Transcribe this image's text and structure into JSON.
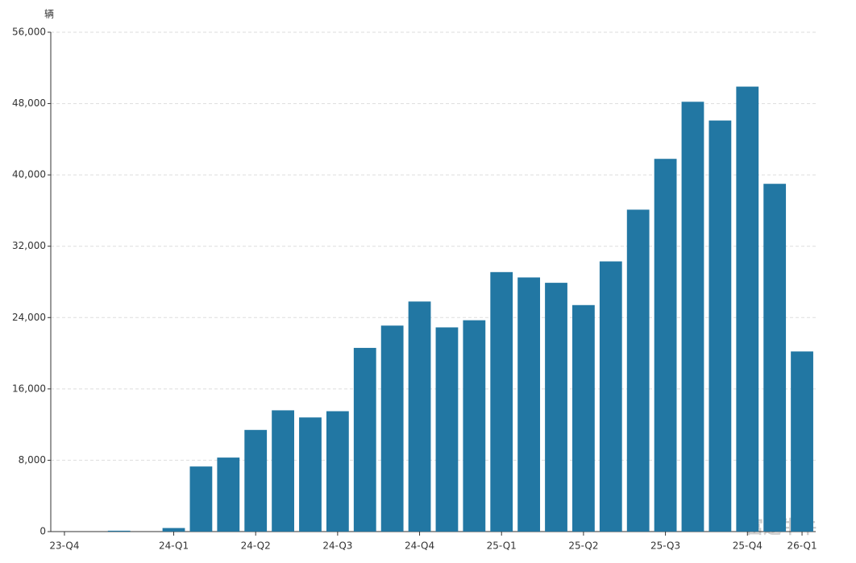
{
  "chart_data": {
    "type": "bar",
    "y_unit": "辆",
    "watermark": "富途牛牛",
    "categories": [
      "23-Q4",
      null,
      null,
      null,
      "24-Q1",
      null,
      null,
      "24-Q2",
      null,
      null,
      "24-Q3",
      null,
      null,
      "24-Q4",
      null,
      null,
      "25-Q1",
      null,
      null,
      "25-Q2",
      null,
      null,
      "25-Q3",
      null,
      null,
      "25-Q4",
      null,
      "26-Q1"
    ],
    "values": [
      0,
      0,
      100,
      0,
      400,
      7300,
      8300,
      11400,
      13600,
      12800,
      13500,
      20600,
      23100,
      25800,
      22900,
      23700,
      29100,
      28500,
      27900,
      25400,
      30300,
      36100,
      41800,
      48200,
      46100,
      49900,
      39000,
      20200
    ],
    "color": "#2277a3",
    "ylim": [
      0,
      56000
    ],
    "yticks": [
      0,
      {
        "value": 8000,
        "label": "8,000"
      },
      {
        "value": 16000,
        "label": "16,000"
      },
      {
        "value": 24000,
        "label": "24,000"
      },
      {
        "value": 32000,
        "label": "32,000"
      },
      {
        "value": 40000,
        "label": "40,000"
      },
      {
        "value": 48000,
        "label": "48,000"
      },
      {
        "value": 56000,
        "label": "56,000"
      }
    ],
    "grid": true
  }
}
